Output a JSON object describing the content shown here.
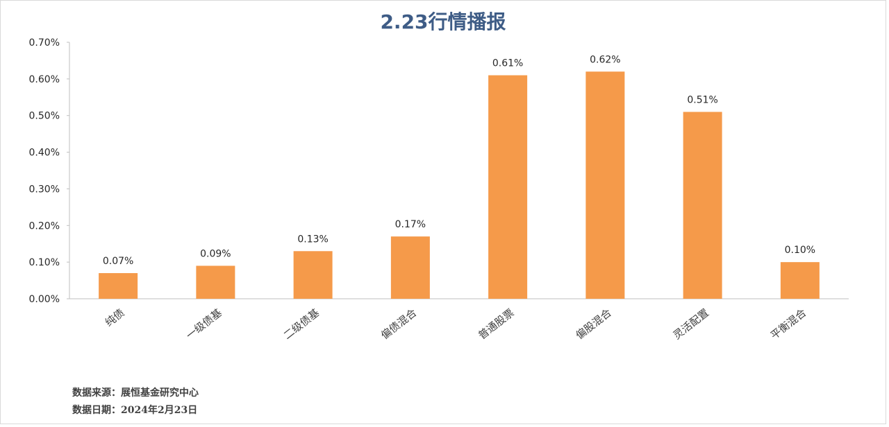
{
  "chart_data": {
    "type": "bar",
    "title": "2.23行情播报",
    "categories": [
      "纯债",
      "一级债基",
      "二级债基",
      "偏债混合",
      "普通股票",
      "偏股混合",
      "灵活配置",
      "平衡混合"
    ],
    "values": [
      0.07,
      0.09,
      0.13,
      0.17,
      0.61,
      0.62,
      0.51,
      0.1
    ],
    "value_labels": [
      "0.07%",
      "0.09%",
      "0.13%",
      "0.17%",
      "0.61%",
      "0.62%",
      "0.51%",
      "0.10%"
    ],
    "y_ticks": [
      "0.00%",
      "0.10%",
      "0.20%",
      "0.30%",
      "0.40%",
      "0.50%",
      "0.60%",
      "0.70%"
    ],
    "ylim": [
      0,
      0.7
    ],
    "grid": false,
    "legend": "none",
    "bar_color": "#f59a4a"
  },
  "footer": {
    "source": "数据来源：展恒基金研究中心",
    "date": "数据日期：2024年2月23日"
  }
}
